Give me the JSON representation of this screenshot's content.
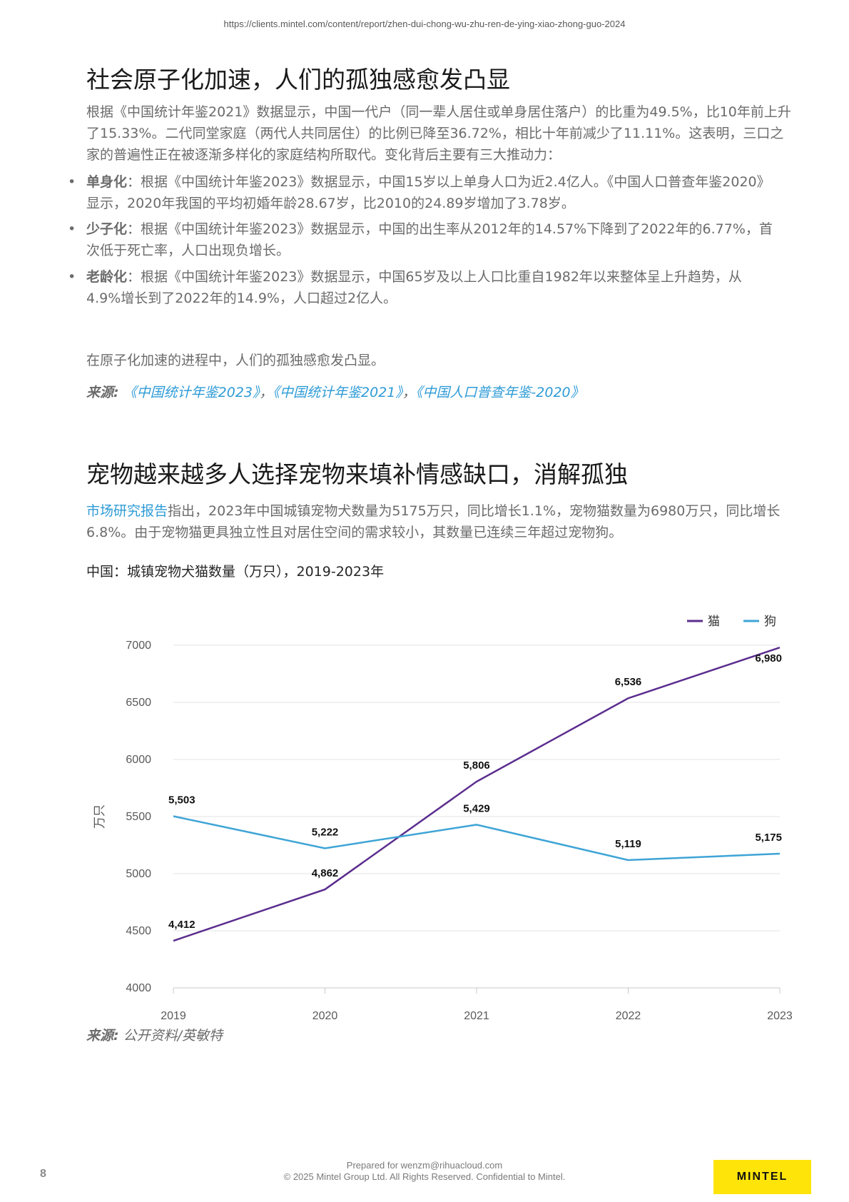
{
  "header": {
    "url": "https://clients.mintel.com/content/report/zhen-dui-chong-wu-zhu-ren-de-ying-xiao-zhong-guo-2024"
  },
  "section1": {
    "title": "社会原子化加速，人们的孤独感愈发凸显",
    "intro": "根据《中国统计年鉴2021》数据显示，中国一代户（同一辈人居住或单身居住落户）的比重为49.5%，比10年前上升了15.33%。二代同堂家庭（两代人共同居住）的比例已降至36.72%，相比十年前减少了11.11%。这表明，三口之家的普遍性正在被逐渐多样化的家庭结构所取代。变化背后主要有三大推动力：",
    "bullets": [
      {
        "term": "单身化",
        "text": "：根据《中国统计年鉴2023》数据显示，中国15岁以上单身人口为近2.4亿人。《中国人口普查年鉴2020》显示，2020年我国的平均初婚年龄28.67岁，比2010的24.89岁增加了3.78岁。"
      },
      {
        "term": "少子化",
        "text": "：根据《中国统计年鉴2023》数据显示，中国的出生率从2012年的14.57%下降到了2022年的6.77%，首次低于死亡率，人口出现负增长。"
      },
      {
        "term": "老龄化",
        "text": "：根据《中国统计年鉴2023》数据显示，中国65岁及以上人口比重自1982年以来整体呈上升趋势，从4.9%增长到了2022年的14.9%，人口超过2亿人。"
      }
    ],
    "conclusion": "在原子化加速的进程中，人们的孤独感愈发凸显。",
    "source_label": "来源:",
    "source_links": [
      "《中国统计年鉴2023》",
      "《中国统计年鉴2021》",
      "《中国人口普查年鉴-2020》"
    ],
    "source_sep": "，"
  },
  "section2": {
    "title": "宠物越来越多人选择宠物来填补情感缺口，消解孤独",
    "link_text": "市场研究报告",
    "body": "指出，2023年中国城镇宠物犬数量为5175万只，同比增长1.1%，宠物猫数量为6980万只，同比增长6.8%。由于宠物猫更具独立性且对居住空间的需求较小，其数量已连续三年超过宠物狗。",
    "chart_caption": "中国：城镇宠物犬猫数量（万只），2019-2023年",
    "source_label": "来源:",
    "source_text": "公开资料/英敏特"
  },
  "chart_data": {
    "type": "line",
    "title": "",
    "x": [
      "2019",
      "2020",
      "2021",
      "2022",
      "2023"
    ],
    "ylabel": "万只",
    "xlabel": "",
    "ylim": [
      4000,
      7000
    ],
    "yticks": [
      4000,
      4500,
      5000,
      5500,
      6000,
      6500,
      7000
    ],
    "grid": true,
    "legend_position": "top-right",
    "series": [
      {
        "name": "猫",
        "color": "#5b2d8e",
        "values": [
          4412,
          4862,
          5806,
          6536,
          6980
        ],
        "labels": [
          "4,412",
          "4,862",
          "5,806",
          "6,536",
          "6,980"
        ]
      },
      {
        "name": "狗",
        "color": "#3ea4d6",
        "values": [
          5503,
          5222,
          5429,
          5119,
          5175
        ],
        "labels": [
          "5,503",
          "5,222",
          "5,429",
          "5,119",
          "5,175"
        ]
      }
    ]
  },
  "footer": {
    "page_number": "8",
    "prepared": "Prepared for wenzm@rihuacloud.com",
    "copyright": "© 2025 Mintel Group Ltd. All Rights Reserved. Confidential to Mintel.",
    "logo": "MINTEL"
  }
}
